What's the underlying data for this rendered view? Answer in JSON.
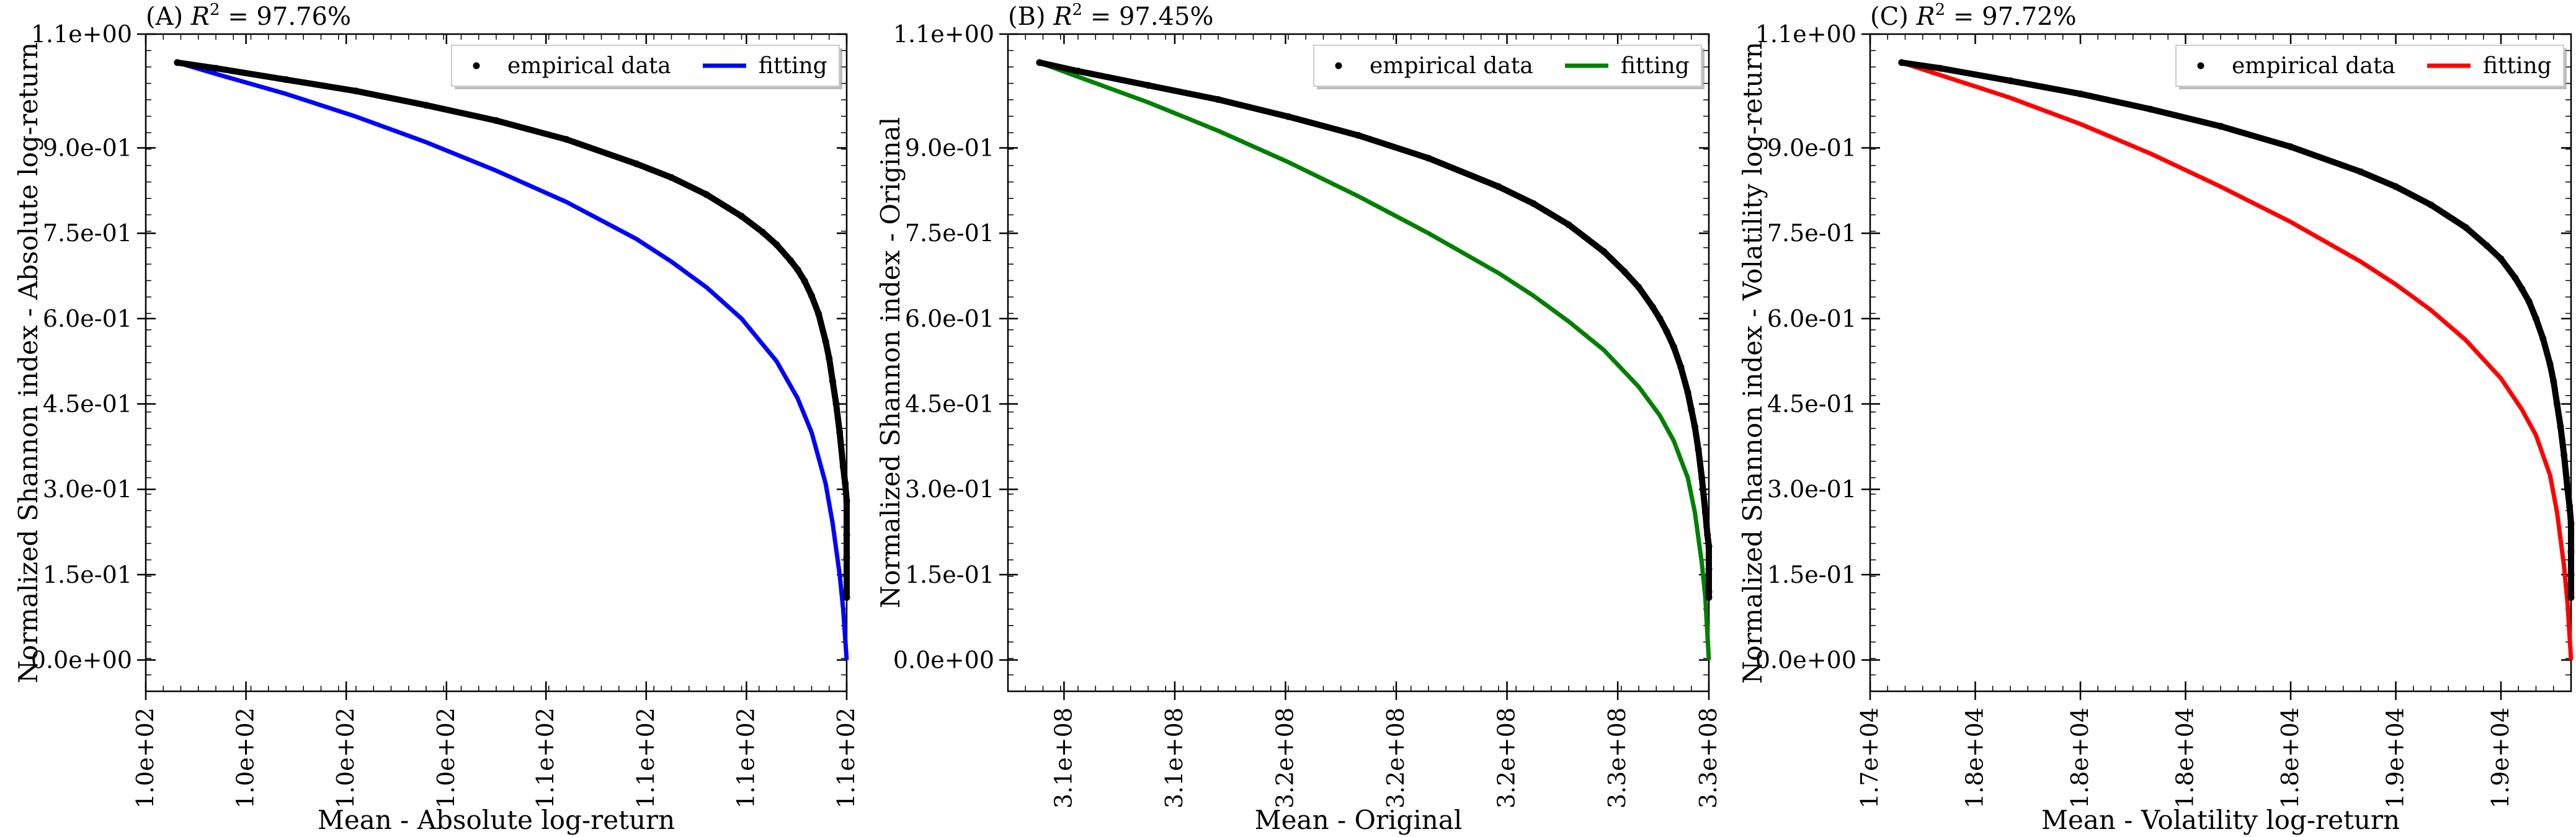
{
  "chart_data": [
    {
      "type": "scatter",
      "panel": "(A)",
      "title": "(A) R² = 97.76%",
      "title_prefix": "(A)",
      "r2_text": "R",
      "r2_sup": "2",
      "r2_value": " = 97.76%",
      "xlabel": "Mean - Absolute log-return",
      "ylabel": "Normalized Shannon index - Absolute log-return",
      "xlim": [
        0,
        1
      ],
      "ylim": [
        -0.055,
        1.1
      ],
      "xticks": [
        0.0,
        0.143,
        0.286,
        0.429,
        0.571,
        0.714,
        0.857,
        1.0
      ],
      "xtick_labels": [
        "1.0e+02",
        "1.0e+02",
        "1.0e+02",
        "1.0e+02",
        "1.1e+02",
        "1.1e+02",
        "1.1e+02",
        "1.1e+02"
      ],
      "yticks": [
        0.0,
        0.15,
        0.3,
        0.45,
        0.6,
        0.75,
        0.9,
        1.1
      ],
      "ytick_labels": [
        "0.0e+00",
        "1.5e-01",
        "3.0e-01",
        "4.5e-01",
        "6.0e-01",
        "7.5e-01",
        "9.0e-01",
        "1.1e+00"
      ],
      "fit_color": "#0000ff",
      "legend": [
        "empirical data",
        "fitting"
      ],
      "legend_position": "top-right",
      "series": [
        {
          "name": "empirical data",
          "x": [
            0.045,
            0.1,
            0.2,
            0.3,
            0.4,
            0.5,
            0.6,
            0.7,
            0.75,
            0.8,
            0.85,
            0.88,
            0.9,
            0.92,
            0.93,
            0.94,
            0.95,
            0.96,
            0.97,
            0.975,
            0.98,
            0.985,
            0.99,
            0.995,
            0.998,
            1.0,
            1.0,
            1.0,
            1.0
          ],
          "y": [
            1.05,
            1.04,
            1.02,
            1.0,
            0.975,
            0.948,
            0.915,
            0.872,
            0.848,
            0.818,
            0.78,
            0.752,
            0.73,
            0.702,
            0.686,
            0.666,
            0.64,
            0.608,
            0.56,
            0.53,
            0.49,
            0.45,
            0.4,
            0.34,
            0.31,
            0.28,
            0.22,
            0.18,
            0.11
          ]
        },
        {
          "name": "fitting",
          "x": [
            0.045,
            0.1,
            0.2,
            0.3,
            0.4,
            0.5,
            0.6,
            0.7,
            0.75,
            0.8,
            0.85,
            0.9,
            0.93,
            0.95,
            0.97,
            0.98,
            0.99,
            0.995,
            1.0
          ],
          "y": [
            1.05,
            1.03,
            0.995,
            0.955,
            0.91,
            0.86,
            0.805,
            0.74,
            0.7,
            0.655,
            0.6,
            0.525,
            0.46,
            0.4,
            0.31,
            0.24,
            0.15,
            0.09,
            0.0
          ]
        }
      ]
    },
    {
      "type": "scatter",
      "panel": "(B)",
      "title": "(B) R² = 97.45%",
      "title_prefix": "(B)",
      "r2_text": "R",
      "r2_sup": "2",
      "r2_value": " = 97.45%",
      "xlabel": "Mean - Original",
      "ylabel": "Normalized Shannon index - Original",
      "xlim": [
        0,
        1
      ],
      "ylim": [
        -0.055,
        1.1
      ],
      "xticks": [
        0.08,
        0.238,
        0.396,
        0.554,
        0.712,
        0.87
      ],
      "xtick_labels": [
        "3.1e+08",
        "3.1e+08",
        "3.2e+08",
        "3.2e+08",
        "3.2e+08",
        "3.3e+08"
      ],
      "extra_xtick_label": "3.3e+08",
      "extra_xtick": 1.0,
      "yticks": [
        0.0,
        0.15,
        0.3,
        0.45,
        0.6,
        0.75,
        0.9,
        1.1
      ],
      "ytick_labels": [
        "0.0e+00",
        "1.5e-01",
        "3.0e-01",
        "4.5e-01",
        "6.0e-01",
        "7.5e-01",
        "9.0e-01",
        "1.1e+00"
      ],
      "fit_color": "#008000",
      "legend": [
        "empirical data",
        "fitting"
      ],
      "legend_position": "top-right",
      "series": [
        {
          "name": "empirical data",
          "x": [
            0.045,
            0.1,
            0.2,
            0.3,
            0.4,
            0.5,
            0.6,
            0.7,
            0.75,
            0.8,
            0.85,
            0.88,
            0.9,
            0.92,
            0.93,
            0.94,
            0.95,
            0.96,
            0.97,
            0.975,
            0.98,
            0.985,
            0.99,
            0.995,
            0.998,
            1.0,
            1.0,
            1.0,
            1.0
          ],
          "y": [
            1.05,
            1.035,
            1.01,
            0.985,
            0.955,
            0.922,
            0.882,
            0.832,
            0.802,
            0.765,
            0.718,
            0.682,
            0.655,
            0.62,
            0.6,
            0.577,
            0.55,
            0.515,
            0.47,
            0.44,
            0.41,
            0.37,
            0.32,
            0.26,
            0.22,
            0.2,
            0.16,
            0.12,
            0.11
          ]
        },
        {
          "name": "fitting",
          "x": [
            0.045,
            0.1,
            0.2,
            0.3,
            0.4,
            0.5,
            0.6,
            0.7,
            0.75,
            0.8,
            0.85,
            0.9,
            0.93,
            0.95,
            0.97,
            0.98,
            0.99,
            0.995,
            1.0
          ],
          "y": [
            1.05,
            1.025,
            0.98,
            0.93,
            0.875,
            0.815,
            0.75,
            0.68,
            0.64,
            0.595,
            0.545,
            0.48,
            0.43,
            0.385,
            0.32,
            0.26,
            0.17,
            0.11,
            0.0
          ]
        }
      ]
    },
    {
      "type": "scatter",
      "panel": "(C)",
      "title": "(C) R² = 97.72%",
      "title_prefix": "(C)",
      "r2_text": "R",
      "r2_sup": "2",
      "r2_value": " = 97.72%",
      "xlabel": "Mean - Volatility log-return",
      "ylabel": "Normalized Shannon index - Volatility log-return",
      "xlim": [
        0,
        1
      ],
      "ylim": [
        -0.055,
        1.1
      ],
      "xticks": [
        0.0,
        0.15,
        0.3,
        0.45,
        0.6,
        0.75,
        0.9
      ],
      "xtick_labels": [
        "1.7e+04",
        "1.8e+04",
        "1.8e+04",
        "1.8e+04",
        "1.8e+04",
        "1.9e+04",
        "1.9e+04"
      ],
      "yticks": [
        0.0,
        0.15,
        0.3,
        0.45,
        0.6,
        0.75,
        0.9,
        1.1
      ],
      "ytick_labels": [
        "0.0e+00",
        "1.5e-01",
        "3.0e-01",
        "4.5e-01",
        "6.0e-01",
        "7.5e-01",
        "9.0e-01",
        "1.1e+00"
      ],
      "fit_color": "#ff0000",
      "legend": [
        "empirical data",
        "fitting"
      ],
      "legend_position": "top-right",
      "series": [
        {
          "name": "empirical data",
          "x": [
            0.045,
            0.1,
            0.2,
            0.3,
            0.4,
            0.5,
            0.6,
            0.7,
            0.75,
            0.8,
            0.85,
            0.88,
            0.9,
            0.92,
            0.93,
            0.94,
            0.95,
            0.96,
            0.97,
            0.975,
            0.98,
            0.985,
            0.99,
            0.995,
            0.998,
            1.0,
            1.0,
            1.0,
            1.0
          ],
          "y": [
            1.05,
            1.04,
            1.018,
            0.995,
            0.968,
            0.938,
            0.902,
            0.858,
            0.832,
            0.8,
            0.76,
            0.728,
            0.705,
            0.672,
            0.652,
            0.63,
            0.6,
            0.565,
            0.52,
            0.49,
            0.45,
            0.41,
            0.36,
            0.3,
            0.27,
            0.24,
            0.19,
            0.15,
            0.11
          ]
        },
        {
          "name": "fitting",
          "x": [
            0.045,
            0.1,
            0.2,
            0.3,
            0.4,
            0.5,
            0.6,
            0.7,
            0.75,
            0.8,
            0.85,
            0.9,
            0.93,
            0.95,
            0.97,
            0.98,
            0.99,
            0.995,
            1.0
          ],
          "y": [
            1.05,
            1.028,
            0.988,
            0.942,
            0.89,
            0.832,
            0.77,
            0.7,
            0.66,
            0.615,
            0.562,
            0.495,
            0.44,
            0.395,
            0.325,
            0.26,
            0.165,
            0.1,
            0.0
          ]
        }
      ]
    }
  ]
}
